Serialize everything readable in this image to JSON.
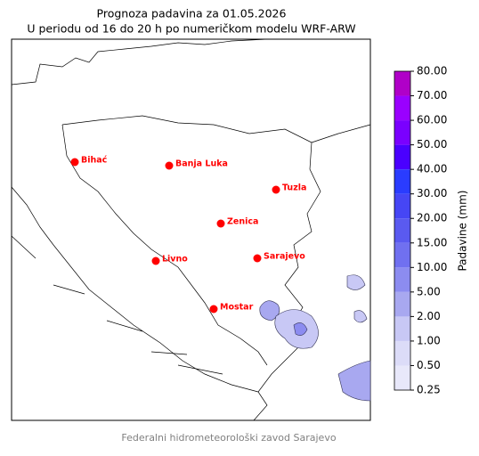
{
  "title": [
    "Prognoza padavina za 01.05.2026",
    "U periodu od 16 do 20 h po numeričkom modelu WRF-ARW"
  ],
  "cities": [
    "Bihać",
    "Banja Luka",
    "Tuzla",
    "Zenica",
    "Livno",
    "Sarajevo",
    "Mostar"
  ],
  "colorbar": {
    "label": "Padavine (mm)",
    "ticks": [
      {
        "value": 0.25,
        "label": "0.25"
      },
      {
        "value": 0.5,
        "label": "0.50"
      },
      {
        "value": 1,
        "label": "1.00"
      },
      {
        "value": 2,
        "label": "2.00"
      },
      {
        "value": 5,
        "label": "5.00"
      },
      {
        "value": 10,
        "label": "10.00"
      },
      {
        "value": 15,
        "label": "15.00"
      },
      {
        "value": 20,
        "label": "20.00"
      },
      {
        "value": 30,
        "label": "30.00"
      },
      {
        "value": 40,
        "label": "40.00"
      },
      {
        "value": 50,
        "label": "50.00"
      },
      {
        "value": 60,
        "label": "60.00"
      },
      {
        "value": 70,
        "label": "70.00"
      },
      {
        "value": 80,
        "label": "80.00"
      }
    ],
    "colors": [
      "#e8e8fa",
      "#dcdcf8",
      "#c8c8f5",
      "#a8a8f0",
      "#8c8cf0",
      "#7070f0",
      "#5a5af0",
      "#4646f5",
      "#2a3cff",
      "#4a00ff",
      "#7a00ff",
      "#9a00ff",
      "#b000c8"
    ]
  },
  "footer": "Federalni hidrometeorološki zavod Sarajevo"
}
